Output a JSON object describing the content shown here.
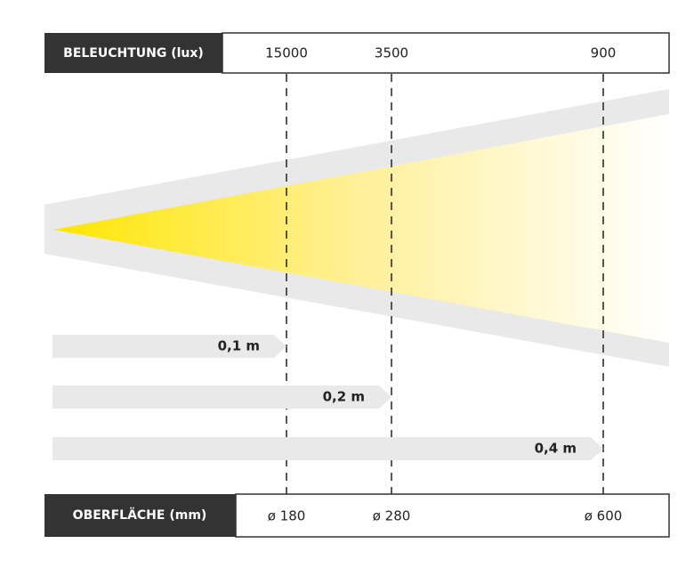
{
  "top": {
    "label": "BELEUCHTUNG (lux)",
    "values": [
      "15000",
      "3500",
      "900"
    ]
  },
  "distances": [
    "0,1 m",
    "0,2 m",
    "0,4 m"
  ],
  "bottom": {
    "label": "OBERFLÄCHE (mm)",
    "values": [
      "ø 180",
      "ø 280",
      "ø 600"
    ]
  }
}
